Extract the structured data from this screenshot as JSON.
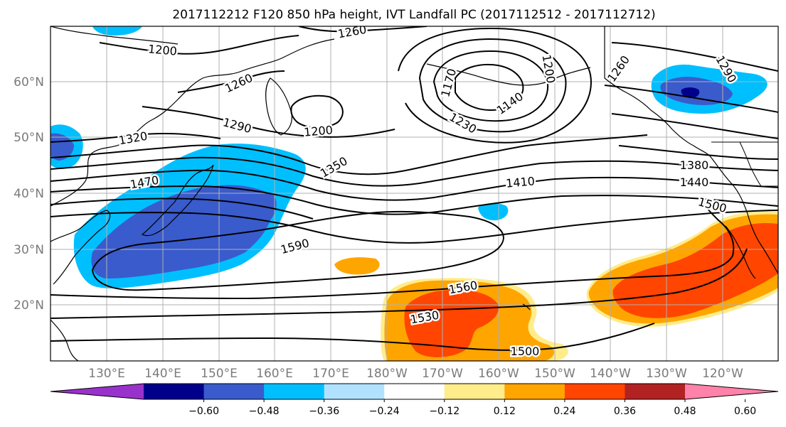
{
  "title": "2017112212 F120 850 hPa height, IVT Landfall PC (2017112512 - 2017112712)",
  "latitude_labels": [
    "60°N",
    "50°N",
    "40°N",
    "30°N",
    "20°N"
  ],
  "longitude_labels": [
    "130°E",
    "140°E",
    "150°E",
    "160°E",
    "170°E",
    "180°W",
    "170°W",
    "160°W",
    "150°W",
    "140°W",
    "130°W",
    "120°W"
  ],
  "contour_labels": [
    "1260",
    "1200",
    "1260",
    "1170",
    "1200",
    "1260",
    "1290",
    "1140",
    "1230",
    "1200",
    "1320",
    "1290",
    "1350",
    "1470",
    "1410",
    "1380",
    "1440",
    "1500",
    "1590",
    "1560",
    "1530",
    "1500"
  ],
  "colorbar": {
    "tick_labels": [
      "−0.60",
      "−0.48",
      "−0.36",
      "−0.24",
      "−0.12",
      "0.12",
      "0.24",
      "0.36",
      "0.48",
      "0.60"
    ],
    "colors": [
      "#9932CC",
      "#00008B",
      "#3A5BCC",
      "#00BFFF",
      "#B0E2FF",
      "#FFFFFF",
      "#FFEC8B",
      "#FFA500",
      "#FF4500",
      "#B22222",
      "#FF82AB"
    ]
  },
  "colors": {
    "land_outline": "#000000",
    "grid": "#b0b0b0",
    "contour": "#000000"
  }
}
